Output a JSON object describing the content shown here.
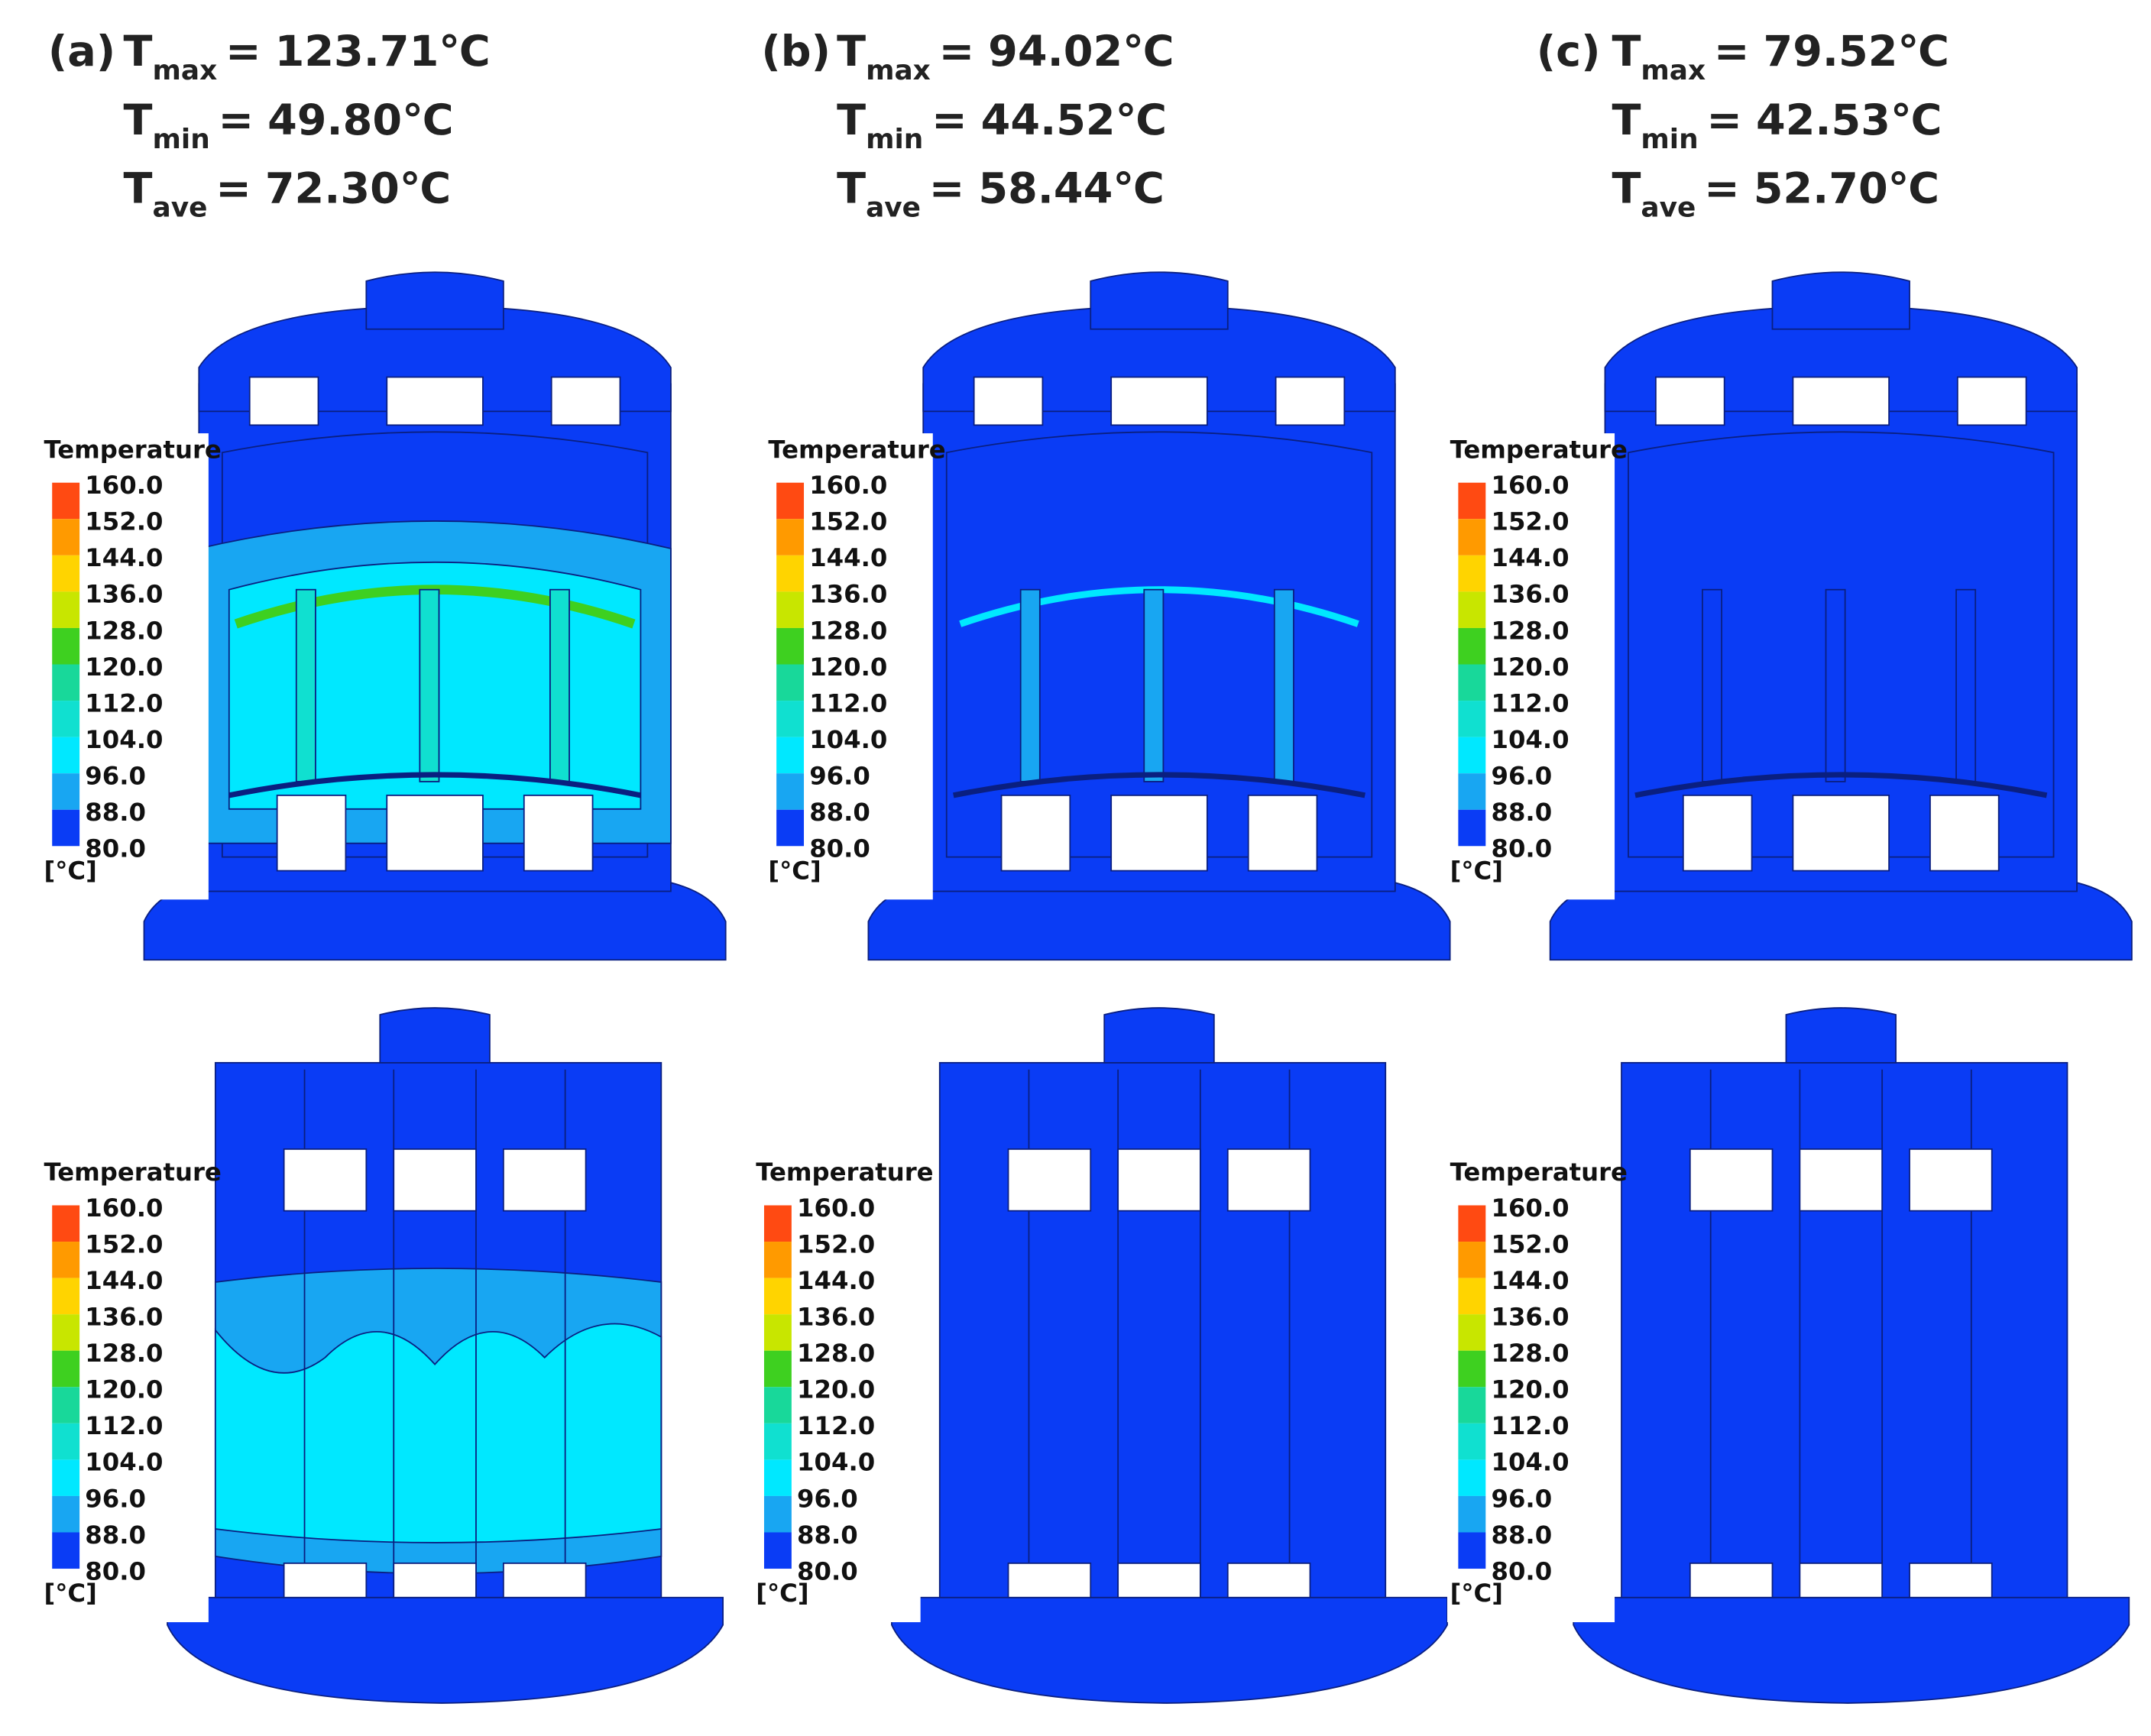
{
  "symbol": "T",
  "relation": "=",
  "panels": [
    {
      "label": "(a)",
      "lines": [
        {
          "subscript": "max",
          "value": "123.71℃"
        },
        {
          "subscript": "min",
          "value": "49.80℃"
        },
        {
          "subscript": "ave",
          "value": "72.30℃"
        }
      ]
    },
    {
      "label": "(b)",
      "lines": [
        {
          "subscript": "max",
          "value": "94.02℃"
        },
        {
          "subscript": "min",
          "value": "44.52℃"
        },
        {
          "subscript": "ave",
          "value": "58.44℃"
        }
      ]
    },
    {
      "label": "(c)",
      "lines": [
        {
          "subscript": "max",
          "value": "79.52℃"
        },
        {
          "subscript": "min",
          "value": "42.53℃"
        },
        {
          "subscript": "ave",
          "value": "52.70℃"
        }
      ]
    }
  ],
  "legend": {
    "title": "Temperature",
    "unit": "[°C]",
    "ticks": [
      "160.0",
      "152.0",
      "144.0",
      "136.0",
      "128.0",
      "120.0",
      "112.0",
      "104.0",
      "96.0",
      "88.0",
      "80.0"
    ],
    "colors": [
      "#ff4a12",
      "#ff9a00",
      "#ffd400",
      "#c8e600",
      "#3ed020",
      "#18d89a",
      "#10e0d0",
      "#00e8ff",
      "#18a6f2",
      "#0a3cf5"
    ]
  }
}
